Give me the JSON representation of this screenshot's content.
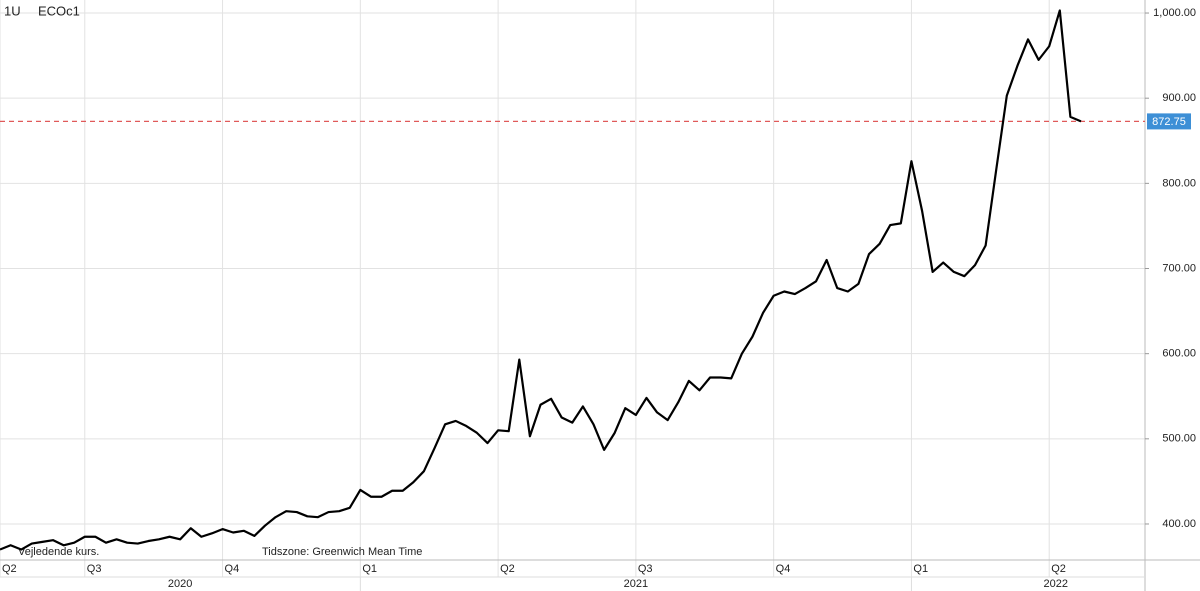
{
  "chart_data": {
    "type": "line",
    "interval": "1U",
    "notes": [
      "Vejledende kurs.",
      "Tidszone: Greenwich Mean Time"
    ],
    "categories": [
      "Q2",
      null,
      null,
      null,
      null,
      null,
      null,
      null,
      "Q3",
      null,
      null,
      null,
      null,
      null,
      null,
      null,
      null,
      null,
      null,
      null,
      null,
      "Q4",
      null,
      null,
      null,
      null,
      null,
      null,
      null,
      null,
      null,
      null,
      null,
      null,
      "Q1",
      null,
      null,
      null,
      null,
      null,
      null,
      null,
      null,
      null,
      null,
      null,
      null,
      "Q2",
      null,
      null,
      null,
      null,
      null,
      null,
      null,
      null,
      null,
      null,
      null,
      null,
      "Q3",
      null,
      null,
      null,
      null,
      null,
      null,
      null,
      null,
      null,
      null,
      null,
      null,
      "Q4",
      null,
      null,
      null,
      null,
      null,
      null,
      null,
      null,
      null,
      null,
      null,
      null,
      "Q1",
      null,
      null,
      null,
      null,
      null,
      null,
      null,
      null,
      null,
      null,
      null,
      null,
      "Q2",
      null,
      null,
      null
    ],
    "x_groups": [
      "2020",
      "2021",
      "2022"
    ],
    "series": [
      {
        "name": "ECOc1",
        "color": "#000000",
        "values": [
          370,
          375,
          370,
          377,
          379,
          381,
          375,
          378,
          385,
          385,
          378,
          382,
          378,
          377,
          380,
          382,
          385,
          382,
          395,
          385,
          389,
          394,
          390,
          392,
          386,
          398,
          408,
          415,
          414,
          409,
          408,
          414,
          415,
          419,
          440,
          432,
          432,
          439,
          439,
          449,
          462,
          489,
          517,
          521,
          515,
          507,
          495,
          510,
          509,
          593,
          503,
          540,
          547,
          525,
          519,
          538,
          517,
          487,
          507,
          536,
          528,
          548,
          531,
          522,
          543,
          568,
          557,
          572,
          572,
          571,
          600,
          620,
          648,
          668,
          673,
          670,
          677,
          685,
          710,
          677,
          673,
          682,
          717,
          729,
          751,
          753,
          826,
          768,
          696,
          707,
          696,
          691,
          704,
          727,
          816,
          903,
          938,
          969,
          945,
          961,
          1003,
          878,
          872.75
        ]
      }
    ],
    "reference_line": {
      "value": 872.75,
      "color": "#e05a5a",
      "label_color": "#3d8fd6"
    },
    "ylim": [
      357.7,
      1015.3
    ],
    "yticks": [
      {
        "value": 400,
        "label": "400.00"
      },
      {
        "value": 500,
        "label": "500.00"
      },
      {
        "value": 600,
        "label": "600.00"
      },
      {
        "value": 700,
        "label": "700.00"
      },
      {
        "value": 800,
        "label": "800.00"
      },
      {
        "value": 900,
        "label": "900.00"
      },
      {
        "value": 1000,
        "label": "1,000.00"
      }
    ],
    "grid": true
  }
}
